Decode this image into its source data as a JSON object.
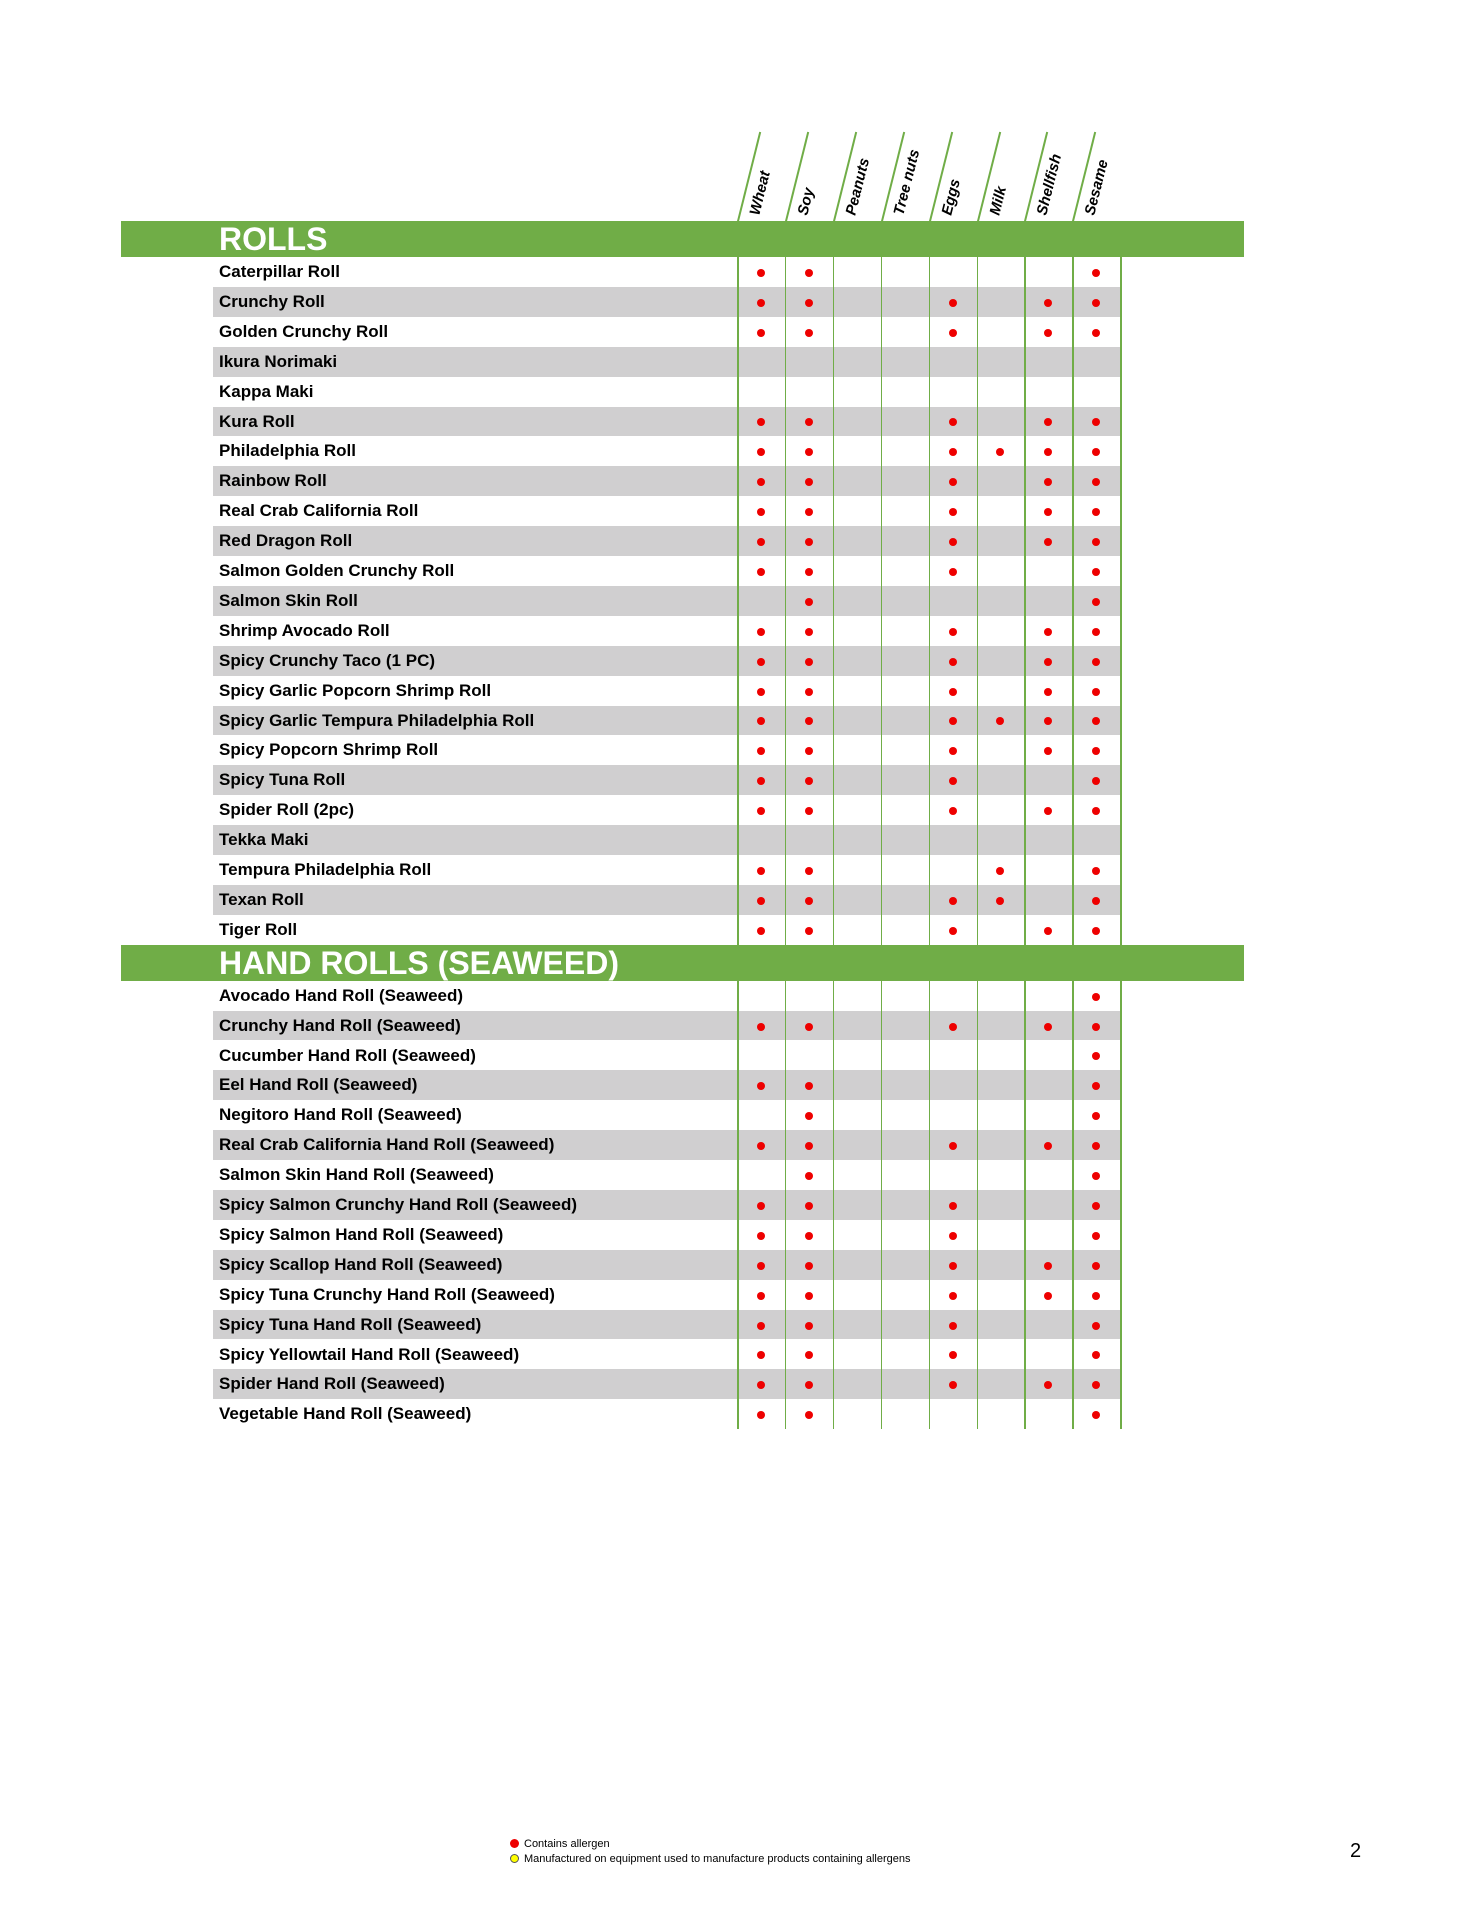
{
  "allergens": [
    "Wheat",
    "Soy",
    "Peanuts",
    "Tree nuts",
    "Eggs",
    "Milk",
    "Shellfish",
    "Sesame"
  ],
  "colors": {
    "accent_green": "#70ad47",
    "contains": "#e00000",
    "manufactured": "#ffff00",
    "row_alt": "#d0cfd0"
  },
  "sections": [
    {
      "title": "ROLLS",
      "items": [
        {
          "name": "Caterpillar Roll",
          "flags": [
            1,
            1,
            0,
            0,
            0,
            0,
            0,
            1
          ]
        },
        {
          "name": "Crunchy Roll",
          "flags": [
            1,
            1,
            0,
            0,
            1,
            0,
            1,
            1
          ]
        },
        {
          "name": "Golden Crunchy Roll",
          "flags": [
            1,
            1,
            0,
            0,
            1,
            0,
            1,
            1
          ]
        },
        {
          "name": "Ikura Norimaki",
          "flags": [
            0,
            0,
            0,
            0,
            0,
            0,
            0,
            0
          ]
        },
        {
          "name": "Kappa Maki",
          "flags": [
            0,
            0,
            0,
            0,
            0,
            0,
            0,
            0
          ]
        },
        {
          "name": "Kura Roll",
          "flags": [
            1,
            1,
            0,
            0,
            1,
            0,
            1,
            1
          ]
        },
        {
          "name": "Philadelphia Roll",
          "flags": [
            1,
            1,
            0,
            0,
            1,
            1,
            1,
            1
          ]
        },
        {
          "name": "Rainbow Roll",
          "flags": [
            1,
            1,
            0,
            0,
            1,
            0,
            1,
            1
          ]
        },
        {
          "name": "Real Crab California Roll",
          "flags": [
            1,
            1,
            0,
            0,
            1,
            0,
            1,
            1
          ]
        },
        {
          "name": "Red Dragon Roll",
          "flags": [
            1,
            1,
            0,
            0,
            1,
            0,
            1,
            1
          ]
        },
        {
          "name": "Salmon Golden Crunchy Roll",
          "flags": [
            1,
            1,
            0,
            0,
            1,
            0,
            0,
            1
          ]
        },
        {
          "name": "Salmon Skin Roll",
          "flags": [
            0,
            1,
            0,
            0,
            0,
            0,
            0,
            1
          ]
        },
        {
          "name": "Shrimp Avocado Roll",
          "flags": [
            1,
            1,
            0,
            0,
            1,
            0,
            1,
            1
          ]
        },
        {
          "name": "Spicy Crunchy Taco (1 PC)",
          "flags": [
            1,
            1,
            0,
            0,
            1,
            0,
            1,
            1
          ]
        },
        {
          "name": "Spicy Garlic Popcorn Shrimp Roll",
          "flags": [
            1,
            1,
            0,
            0,
            1,
            0,
            1,
            1
          ]
        },
        {
          "name": "Spicy Garlic Tempura Philadelphia Roll",
          "flags": [
            1,
            1,
            0,
            0,
            1,
            1,
            1,
            1
          ]
        },
        {
          "name": "Spicy Popcorn Shrimp Roll",
          "flags": [
            1,
            1,
            0,
            0,
            1,
            0,
            1,
            1
          ]
        },
        {
          "name": "Spicy Tuna Roll",
          "flags": [
            1,
            1,
            0,
            0,
            1,
            0,
            0,
            1
          ]
        },
        {
          "name": "Spider Roll (2pc)",
          "flags": [
            1,
            1,
            0,
            0,
            1,
            0,
            1,
            1
          ]
        },
        {
          "name": "Tekka Maki",
          "flags": [
            0,
            0,
            0,
            0,
            0,
            0,
            0,
            0
          ]
        },
        {
          "name": "Tempura Philadelphia Roll",
          "flags": [
            1,
            1,
            0,
            0,
            0,
            1,
            0,
            1
          ]
        },
        {
          "name": "Texan Roll",
          "flags": [
            1,
            1,
            0,
            0,
            1,
            1,
            0,
            1
          ]
        },
        {
          "name": "Tiger Roll",
          "flags": [
            1,
            1,
            0,
            0,
            1,
            0,
            1,
            1
          ]
        }
      ]
    },
    {
      "title": "HAND ROLLS (SEAWEED)",
      "items": [
        {
          "name": "Avocado Hand Roll (Seaweed)",
          "flags": [
            0,
            0,
            0,
            0,
            0,
            0,
            0,
            1
          ]
        },
        {
          "name": "Crunchy Hand Roll (Seaweed)",
          "flags": [
            1,
            1,
            0,
            0,
            1,
            0,
            1,
            1
          ]
        },
        {
          "name": "Cucumber Hand Roll (Seaweed)",
          "flags": [
            0,
            0,
            0,
            0,
            0,
            0,
            0,
            1
          ]
        },
        {
          "name": "Eel Hand Roll (Seaweed)",
          "flags": [
            1,
            1,
            0,
            0,
            0,
            0,
            0,
            1
          ]
        },
        {
          "name": "Negitoro Hand Roll (Seaweed)",
          "flags": [
            0,
            1,
            0,
            0,
            0,
            0,
            0,
            1
          ]
        },
        {
          "name": "Real Crab California Hand Roll (Seaweed)",
          "flags": [
            1,
            1,
            0,
            0,
            1,
            0,
            1,
            1
          ]
        },
        {
          "name": "Salmon Skin Hand Roll (Seaweed)",
          "flags": [
            0,
            1,
            0,
            0,
            0,
            0,
            0,
            1
          ]
        },
        {
          "name": "Spicy Salmon Crunchy Hand Roll (Seaweed)",
          "flags": [
            1,
            1,
            0,
            0,
            1,
            0,
            0,
            1
          ]
        },
        {
          "name": "Spicy Salmon Hand Roll (Seaweed)",
          "flags": [
            1,
            1,
            0,
            0,
            1,
            0,
            0,
            1
          ]
        },
        {
          "name": "Spicy Scallop Hand Roll (Seaweed)",
          "flags": [
            1,
            1,
            0,
            0,
            1,
            0,
            1,
            1
          ]
        },
        {
          "name": "Spicy Tuna Crunchy Hand Roll (Seaweed)",
          "flags": [
            1,
            1,
            0,
            0,
            1,
            0,
            1,
            1
          ]
        },
        {
          "name": "Spicy Tuna Hand Roll (Seaweed)",
          "flags": [
            1,
            1,
            0,
            0,
            1,
            0,
            0,
            1
          ]
        },
        {
          "name": "Spicy Yellowtail Hand Roll (Seaweed)",
          "flags": [
            1,
            1,
            0,
            0,
            1,
            0,
            0,
            1
          ]
        },
        {
          "name": "Spider Hand Roll (Seaweed)",
          "flags": [
            1,
            1,
            0,
            0,
            1,
            0,
            1,
            1
          ]
        },
        {
          "name": "Vegetable Hand Roll (Seaweed)",
          "flags": [
            1,
            1,
            0,
            0,
            0,
            0,
            0,
            1
          ]
        }
      ]
    }
  ],
  "legend": {
    "contains": "Contains allergen",
    "manufactured": "Manufactured on equipment used to manufacture products containing allergens"
  },
  "page_number": "2"
}
